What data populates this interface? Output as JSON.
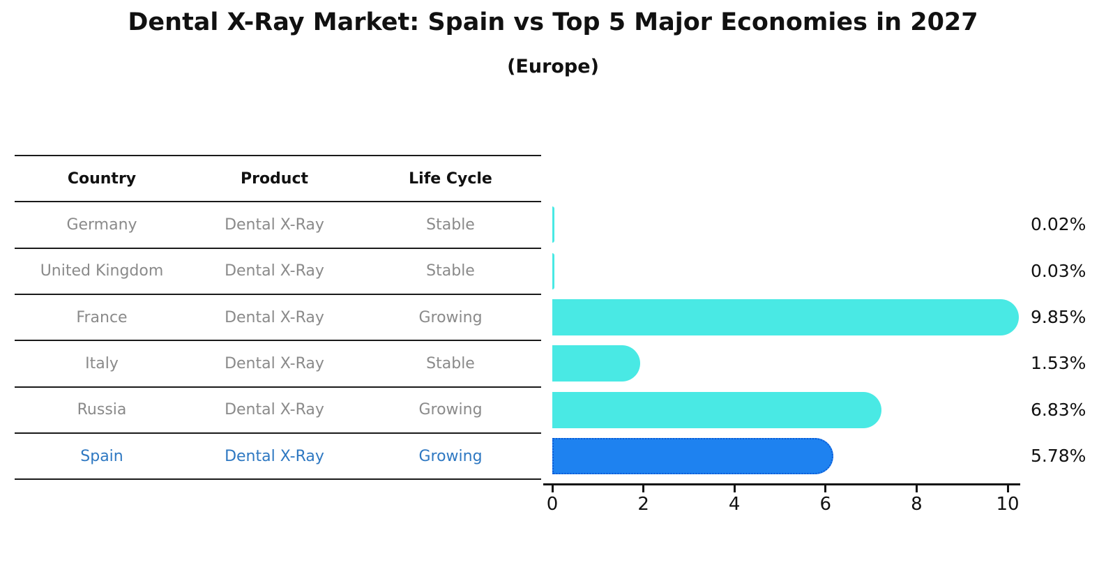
{
  "title": "Dental X-Ray Market: Spain vs Top 5 Major Economies in 2027",
  "subtitle": "(Europe)",
  "table": {
    "headers": [
      "Country",
      "Product",
      "Life Cycle"
    ],
    "rows": [
      {
        "country": "Germany",
        "product": "Dental X-Ray",
        "life_cycle": "Stable",
        "highlighted": false
      },
      {
        "country": "United Kingdom",
        "product": "Dental X-Ray",
        "life_cycle": "Stable",
        "highlighted": false
      },
      {
        "country": "France",
        "product": "Dental X-Ray",
        "life_cycle": "Growing",
        "highlighted": false
      },
      {
        "country": "Italy",
        "product": "Dental X-Ray",
        "life_cycle": "Stable",
        "highlighted": false
      },
      {
        "country": "Russia",
        "product": "Dental X-Ray",
        "life_cycle": "Growing",
        "highlighted": false
      },
      {
        "country": "Spain",
        "product": "Dental X-Ray",
        "life_cycle": "Growing",
        "highlighted": true
      }
    ]
  },
  "chart_data": {
    "type": "bar",
    "orientation": "horizontal",
    "categories": [
      "Germany",
      "United Kingdom",
      "France",
      "Italy",
      "Russia",
      "Spain"
    ],
    "values": [
      0.02,
      0.03,
      9.85,
      1.53,
      6.83,
      5.78
    ],
    "labels": [
      "0.02%",
      "0.03%",
      "9.85%",
      "1.53%",
      "6.83%",
      "5.78%"
    ],
    "x_ticks": [
      "0",
      "2",
      "4",
      "6",
      "8",
      "10"
    ],
    "xlim": [
      0,
      10
    ],
    "grid": false,
    "legend": "none",
    "highlight_category": "Spain",
    "title": "Dental X-Ray Market: Spain vs Top 5 Major Economies in 2027",
    "subtitle": "(Europe)"
  },
  "colors": {
    "bar": "#49E9E4",
    "highlight_bar": "#1E82F0",
    "highlight_border": "#0C5BD6",
    "highlight_text": "#2E78C2",
    "text": "#111111",
    "muted_text": "#8A8A8A",
    "line": "#1A1A1A"
  }
}
